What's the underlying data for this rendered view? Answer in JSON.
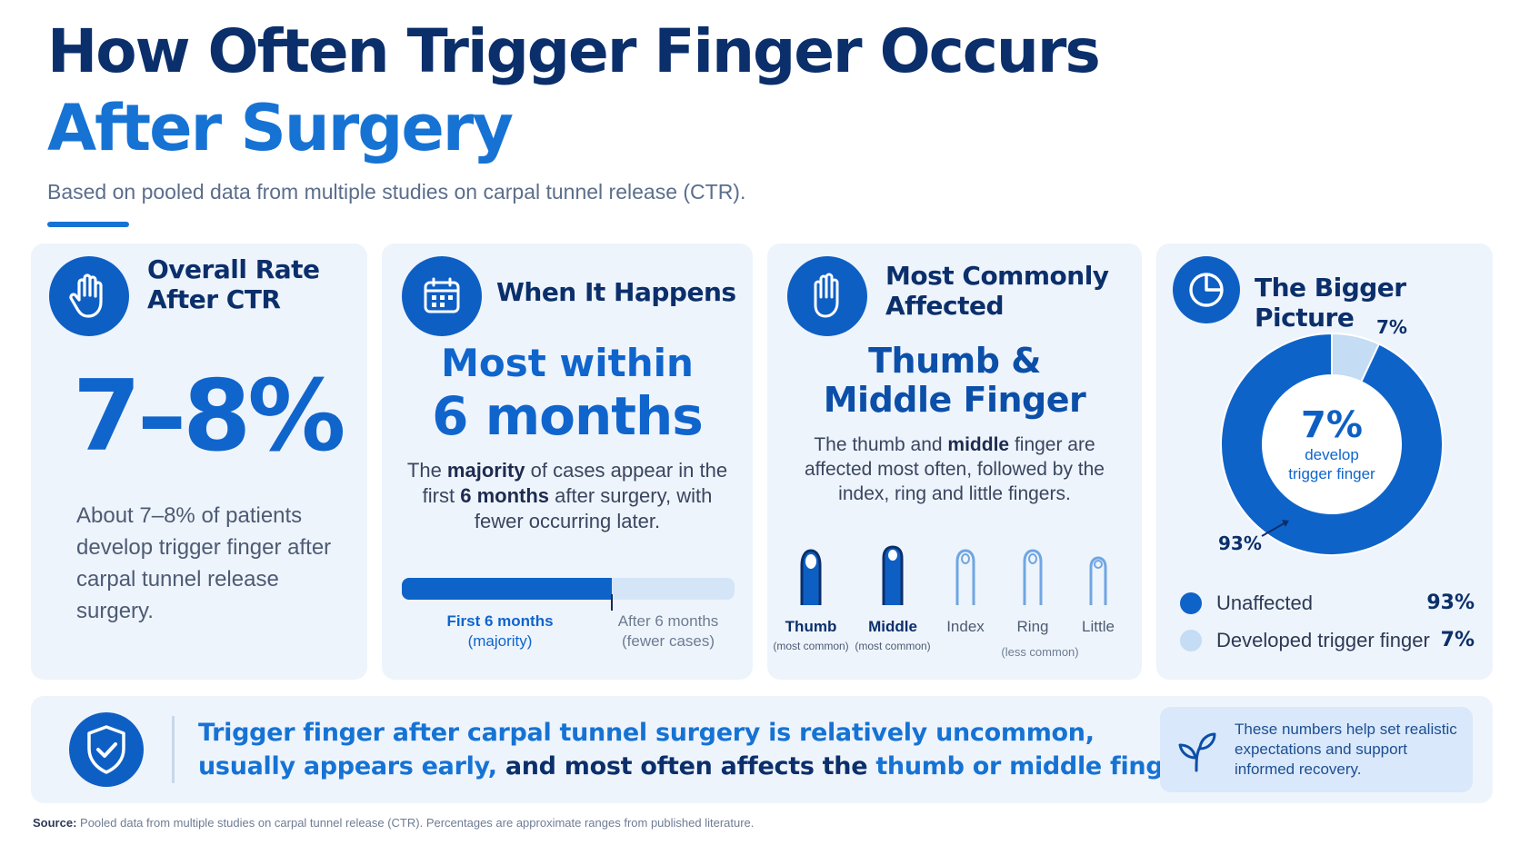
{
  "header": {
    "title_line1": "How Often Trigger Finger Occurs",
    "title_line2": "After Surgery",
    "subtitle": "Based on pooled data from multiple studies on carpal tunnel release (CTR)."
  },
  "card_overall": {
    "title_line1": "Overall Rate",
    "title_line2": "After CTR",
    "big_value": "7–8%",
    "body": "About 7–8% of patients develop trigger finger after carpal tunnel release surgery."
  },
  "card_timing": {
    "title": "When It Happens",
    "big_line1": "Most within",
    "big_line2": "6 months",
    "body_pre": "The ",
    "body_b1": "majority",
    "body_mid1": " of cases appear in the first ",
    "body_b2": "6 months",
    "body_post": " after surgery, with fewer occurring later.",
    "bar_first_share": 0.63,
    "label_first": "First 6 months",
    "label_first_sub": "(majority)",
    "label_after": "After 6 months",
    "label_after_sub": "(fewer cases)"
  },
  "card_fingers": {
    "title_line1": "Most Commonly",
    "title_line2": "Affected",
    "big_line1": "Thumb &",
    "big_line2": "Middle Finger",
    "body_pre": "The thumb and ",
    "body_b": "middle",
    "body_post": " finger are affected most often, followed by the index, ring and little fingers.",
    "fingers": [
      {
        "name": "Thumb",
        "sub": "(most common)"
      },
      {
        "name": "Middle",
        "sub": "(most common)"
      },
      {
        "name": "Index",
        "sub": ""
      },
      {
        "name": "Ring",
        "sub": ""
      },
      {
        "name": "Little",
        "sub": ""
      }
    ],
    "less_common": "(less common)"
  },
  "card_picture": {
    "title": "The Bigger Picture",
    "center_value": "7%",
    "center_line1": "develop",
    "center_line2": "trigger finger",
    "label_small": "7%",
    "label_large": "93%",
    "legend": [
      {
        "label": "Unaffected",
        "value": "93%",
        "color": "#0e63c9"
      },
      {
        "label": "Developed trigger finger",
        "value": "7%",
        "color": "#c4dcf4"
      }
    ]
  },
  "chart_data": {
    "type": "pie",
    "categories": [
      "Unaffected",
      "Developed trigger finger"
    ],
    "values": [
      93,
      7
    ],
    "colors": [
      "#0e63c9",
      "#c4dcf4"
    ]
  },
  "banner": {
    "line1": "Trigger finger after carpal tunnel surgery is relatively uncommon,",
    "line2_a": "usually appears early, ",
    "line2_b": "and most often affects the ",
    "line2_c": "thumb or middle finger.",
    "note": "These numbers help set realistic expectations and support informed recovery."
  },
  "source": {
    "label": "Source:",
    "text": " Pooled data from multiple studies on carpal tunnel release (CTR). Percentages are approximate ranges from published literature."
  },
  "colors": {
    "navy": "#0b2f6b",
    "accent": "#1673d4",
    "card_bg": "#eef4fc"
  }
}
